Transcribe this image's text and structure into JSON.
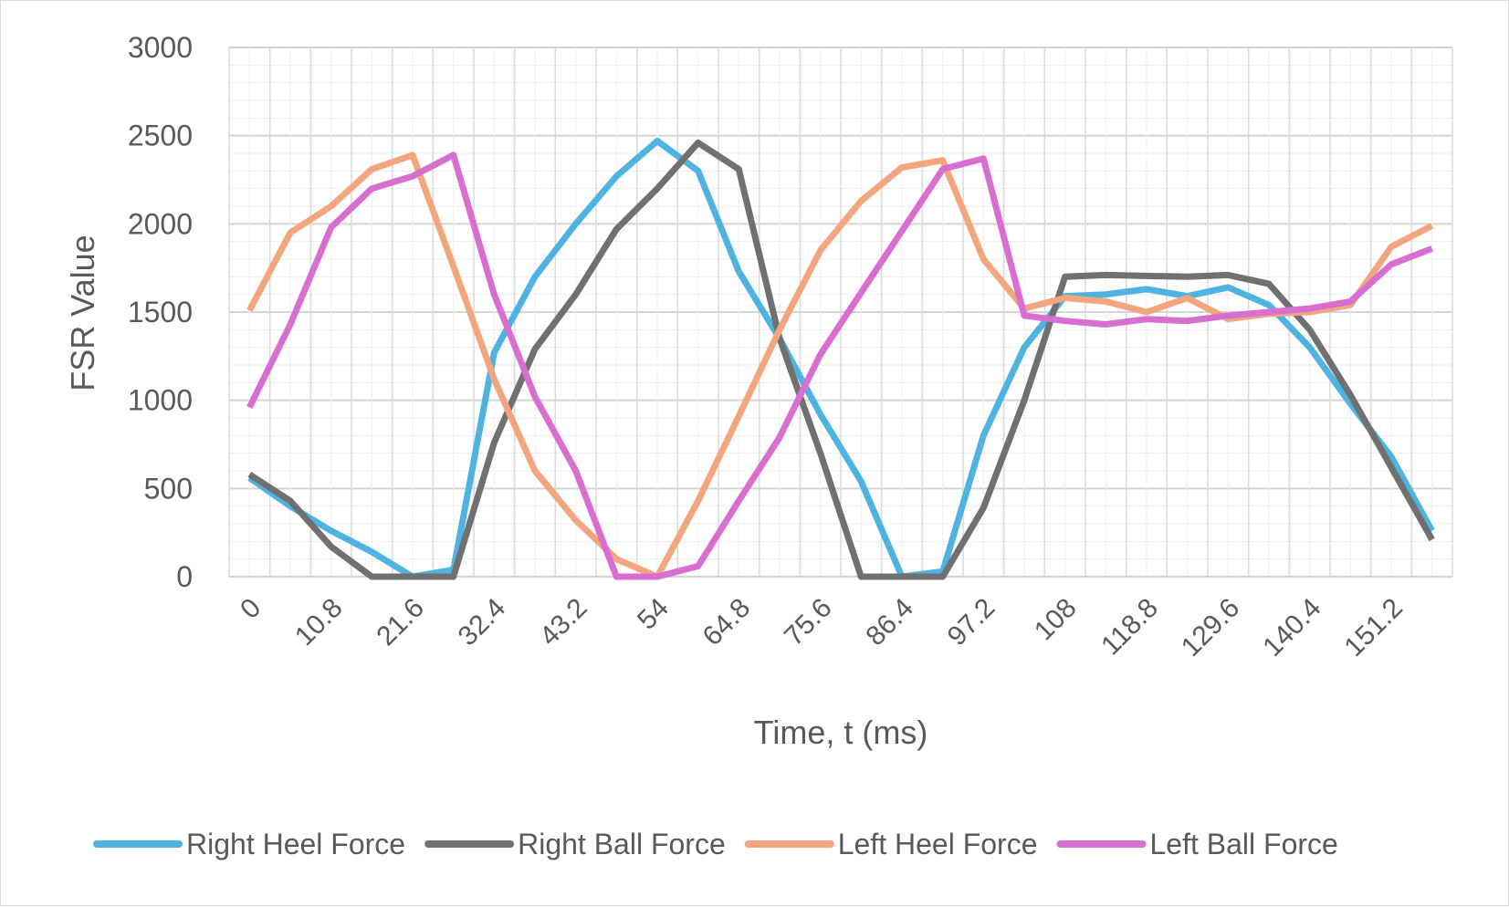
{
  "chart_data": {
    "type": "line",
    "title": "",
    "xlabel": "Time, t (ms)",
    "ylabel": "FSR Value",
    "ylim": [
      0,
      3000
    ],
    "yticks": [
      0,
      500,
      1000,
      1500,
      2000,
      2500,
      3000
    ],
    "grid": true,
    "legend_position": "bottom",
    "categories": [
      "0",
      "5.4",
      "10.8",
      "16.2",
      "21.6",
      "27",
      "32.4",
      "37.8",
      "43.2",
      "48.6",
      "54",
      "59.4",
      "64.8",
      "70.2",
      "75.6",
      "81",
      "86.4",
      "91.8",
      "97.2",
      "102.6",
      "108",
      "113.4",
      "118.8",
      "124.2",
      "129.6",
      "135",
      "140.4",
      "145.8",
      "151.2",
      "156.6"
    ],
    "x_tick_labels": [
      "0",
      "10.8",
      "21.6",
      "32.4",
      "43.2",
      "54",
      "64.8",
      "75.6",
      "86.4",
      "97.2",
      "108",
      "118.8",
      "129.6",
      "140.4",
      "151.2"
    ],
    "series": [
      {
        "name": "Right Heel Force",
        "color": "#4eb3e0",
        "values": [
          560,
          400,
          260,
          140,
          0,
          40,
          1270,
          1700,
          2000,
          2270,
          2470,
          2300,
          1730,
          1350,
          920,
          540,
          0,
          30,
          800,
          1300,
          1590,
          1600,
          1630,
          1590,
          1640,
          1540,
          1300,
          980,
          680,
          260
        ]
      },
      {
        "name": "Right Ball Force",
        "color": "#707070",
        "values": [
          580,
          430,
          170,
          0,
          0,
          0,
          760,
          1290,
          1600,
          1970,
          2200,
          2460,
          2310,
          1350,
          700,
          0,
          0,
          0,
          390,
          1000,
          1700,
          1710,
          1705,
          1700,
          1710,
          1660,
          1400,
          1030,
          620,
          210
        ]
      },
      {
        "name": "Left Heel Force",
        "color": "#f3a67e",
        "values": [
          1510,
          1950,
          2100,
          2310,
          2390,
          1760,
          1120,
          600,
          320,
          100,
          0,
          430,
          910,
          1400,
          1850,
          2130,
          2320,
          2360,
          1800,
          1520,
          1580,
          1560,
          1500,
          1580,
          1460,
          1490,
          1500,
          1540,
          1870,
          1990
        ]
      },
      {
        "name": "Left Ball Force",
        "color": "#d86fd0",
        "values": [
          960,
          1430,
          1980,
          2200,
          2270,
          2390,
          1600,
          1020,
          600,
          0,
          0,
          60,
          430,
          790,
          1260,
          1610,
          1960,
          2310,
          2370,
          1480,
          1450,
          1430,
          1460,
          1450,
          1480,
          1500,
          1520,
          1560,
          1770,
          1860
        ]
      }
    ]
  }
}
